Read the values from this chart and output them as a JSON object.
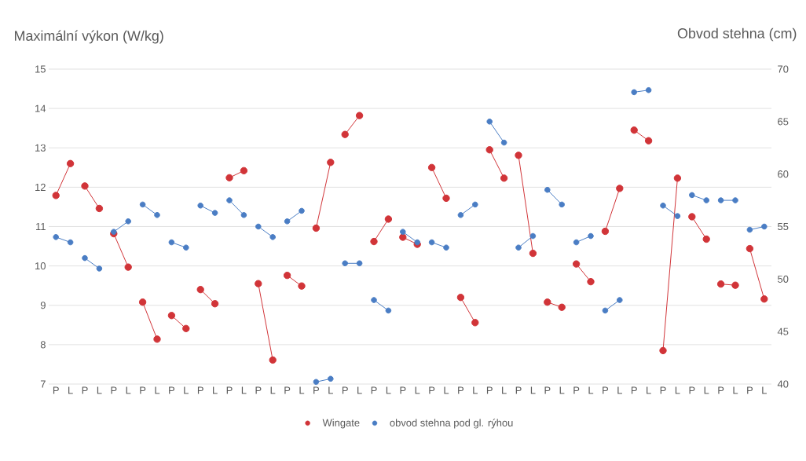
{
  "chart_data": {
    "type": "line",
    "ylabel": "Maximální výkon (W/kg)",
    "y2label": "Obvod stehna (cm)",
    "categories": [
      "P",
      "L",
      "P",
      "L",
      "P",
      "L",
      "P",
      "L",
      "P",
      "L",
      "P",
      "L",
      "P",
      "L",
      "P",
      "L",
      "P",
      "L",
      "P",
      "L",
      "P",
      "L",
      "P",
      "L",
      "P",
      "L",
      "P",
      "L",
      "P",
      "L",
      "P",
      "L",
      "P",
      "L",
      "P",
      "L",
      "P",
      "L",
      "P",
      "L",
      "P",
      "L",
      "P",
      "L",
      "P",
      "L",
      "P",
      "L",
      "P",
      "L"
    ],
    "series": [
      {
        "name": "Wingate",
        "color": "#d13438",
        "values": [
          11.79,
          12.6,
          12.03,
          11.46,
          10.82,
          9.97,
          9.08,
          8.14,
          8.74,
          8.41,
          9.4,
          9.04,
          12.24,
          12.42,
          9.55,
          7.61,
          9.76,
          9.49,
          10.96,
          12.63,
          13.34,
          13.82,
          10.62,
          11.19,
          10.73,
          10.55,
          12.5,
          11.72,
          9.2,
          8.56,
          12.95,
          12.23,
          12.81,
          10.32,
          9.08,
          8.95,
          10.05,
          9.6,
          10.88,
          11.97,
          13.45,
          13.18,
          7.85,
          12.23,
          11.25,
          10.68,
          9.54,
          9.51,
          10.44,
          9.16
        ]
      },
      {
        "name": "obvod stehna pod gl. rýhou",
        "color": "#4a7dc4",
        "axis": "y2",
        "values": [
          54.0,
          53.5,
          52.0,
          51.0,
          54.5,
          55.5,
          57.1,
          56.1,
          53.5,
          53.0,
          57.0,
          56.3,
          57.5,
          56.1,
          55.0,
          54.0,
          55.5,
          56.5,
          40.2,
          40.5,
          51.5,
          51.5,
          48.0,
          47.0,
          54.5,
          53.5,
          53.5,
          53.0,
          56.1,
          57.1,
          65.0,
          63.0,
          53.0,
          54.1,
          58.5,
          57.1,
          53.5,
          54.1,
          47.0,
          48.0,
          67.8,
          68.0,
          57.0,
          56.0,
          58.0,
          57.5,
          57.5,
          57.5,
          54.7,
          55.0
        ]
      }
    ],
    "ylim": [
      7,
      15
    ],
    "yticks": [
      7,
      8,
      9,
      10,
      11,
      12,
      13,
      14,
      15
    ],
    "y2lim": [
      40,
      70
    ],
    "y2ticks": [
      40,
      45,
      50,
      55,
      60,
      65,
      70
    ],
    "grid": "y",
    "legend": "bottom",
    "marker": "circle",
    "line_style": "solid"
  }
}
